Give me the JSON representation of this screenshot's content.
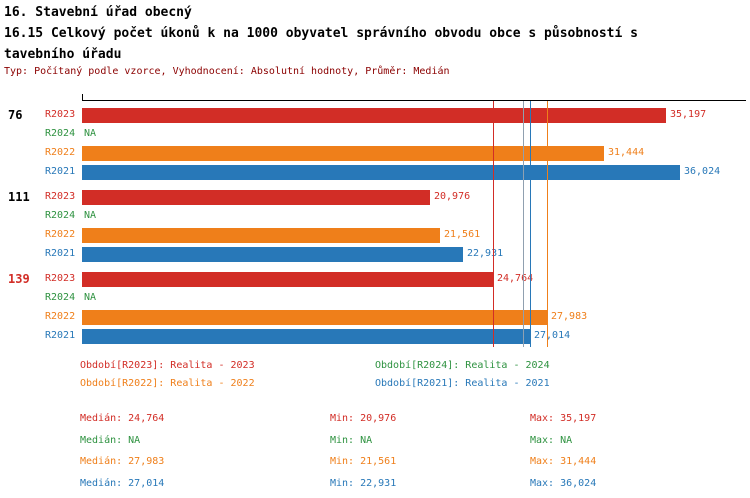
{
  "header": {
    "title_line1": "16. Stavební úřad obecný",
    "title_line2": "16.15 Celkový počet úkonů k na 1000 obyvatel správního obvodu obce s působností s",
    "title_line3": "tavebního úřadu",
    "subtitle": "Typ: Počítaný podle vzorce, Vyhodnocení: Absolutní hodnoty, Průměr: Medián"
  },
  "colors": {
    "r2023": "#d22d26",
    "r2024": "#2e9240",
    "r2022": "#ef7f1a",
    "r2021": "#2878b8",
    "grid_average": "#90a0b0",
    "axis": "#000000",
    "subtitle": "#8b0000"
  },
  "chart_data": {
    "type": "bar",
    "orientation": "horizontal",
    "x_max": 40000,
    "series_order": [
      "R2023",
      "R2024",
      "R2022",
      "R2021"
    ],
    "groups": [
      {
        "label": "76",
        "label_color": "#000000",
        "bars": [
          {
            "series": "R2023",
            "value": 35197,
            "display": "35,197",
            "color_key": "r2023"
          },
          {
            "series": "R2024",
            "value": null,
            "display": "NA",
            "color_key": "r2024"
          },
          {
            "series": "R2022",
            "value": 31444,
            "display": "31,444",
            "color_key": "r2022"
          },
          {
            "series": "R2021",
            "value": 36024,
            "display": "36,024",
            "color_key": "r2021"
          }
        ]
      },
      {
        "label": "111",
        "label_color": "#000000",
        "bars": [
          {
            "series": "R2023",
            "value": 20976,
            "display": "20,976",
            "color_key": "r2023"
          },
          {
            "series": "R2024",
            "value": null,
            "display": "NA",
            "color_key": "r2024"
          },
          {
            "series": "R2022",
            "value": 21561,
            "display": "21,561",
            "color_key": "r2022"
          },
          {
            "series": "R2021",
            "value": 22931,
            "display": "22,931",
            "color_key": "r2021"
          }
        ]
      },
      {
        "label": "139",
        "label_color": "#d22d26",
        "bars": [
          {
            "series": "R2023",
            "value": 24764,
            "display": "24,764",
            "color_key": "r2023"
          },
          {
            "series": "R2024",
            "value": null,
            "display": "NA",
            "color_key": "r2024"
          },
          {
            "series": "R2022",
            "value": 27983,
            "display": "27,983",
            "color_key": "r2022"
          },
          {
            "series": "R2021",
            "value": 27014,
            "display": "27,014",
            "color_key": "r2021"
          }
        ]
      }
    ],
    "reference_lines": [
      {
        "value": 24764,
        "color_key": "r2023"
      },
      {
        "value": 26587,
        "color_key": "grid_average"
      },
      {
        "value": 27014,
        "color_key": "r2021"
      },
      {
        "value": 27983,
        "color_key": "r2022"
      }
    ]
  },
  "legend": {
    "items": [
      {
        "label": "Období[R2023]: Realita - 2023",
        "color_key": "r2023"
      },
      {
        "label": "Období[R2024]: Realita - 2024",
        "color_key": "r2024"
      },
      {
        "label": "Období[R2022]: Realita - 2022",
        "color_key": "r2022"
      },
      {
        "label": "Období[R2021]: Realita - 2021",
        "color_key": "r2021"
      }
    ]
  },
  "stats": {
    "rows": [
      {
        "median": "Medián: 24,764",
        "min": "Min: 20,976",
        "max": "Max: 35,197",
        "color_key": "r2023"
      },
      {
        "median": "Medián: NA",
        "min": "Min: NA",
        "max": "Max: NA",
        "color_key": "r2024"
      },
      {
        "median": "Medián: 27,983",
        "min": "Min: 21,561",
        "max": "Max: 31,444",
        "color_key": "r2022"
      },
      {
        "median": "Medián: 27,014",
        "min": "Min: 22,931",
        "max": "Max: 36,024",
        "color_key": "r2021"
      }
    ]
  }
}
